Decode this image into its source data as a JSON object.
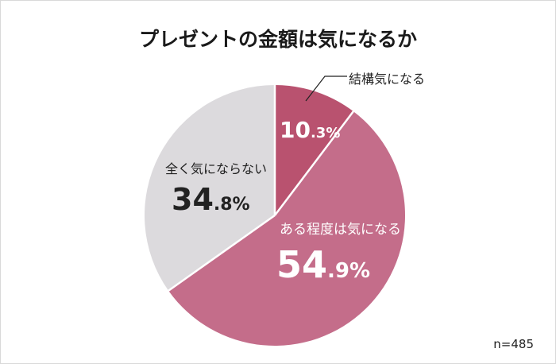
{
  "title": "プレゼントの金額は気になるか",
  "sample_size": "n=485",
  "colors": {
    "slice_very": "#B9526F",
    "slice_somewhat": "#C46D8A",
    "slice_not": "#DCDADD",
    "separator": "#FFFFFF",
    "text_dark": "#222222",
    "text_light": "#FFFFFF"
  },
  "slices": [
    {
      "label": "結構気になる",
      "int": "10",
      "dec": ".3%",
      "value": 10.3
    },
    {
      "label": "ある程度は気になる",
      "int": "54",
      "dec": ".9%",
      "value": 54.9
    },
    {
      "label": "全く気にならない",
      "int": "34",
      "dec": ".8%",
      "value": 34.8
    }
  ],
  "chart_data": {
    "type": "pie",
    "title": "プレゼントの金額は気になるか",
    "categories": [
      "結構気になる",
      "ある程度は気になる",
      "全く気にならない"
    ],
    "values": [
      10.3,
      54.9,
      34.8
    ],
    "unit": "%",
    "start_angle": "12 o'clock, clockwise",
    "annotations": [
      "n=485"
    ],
    "colors": [
      "#B9526F",
      "#C46D8A",
      "#DCDADD"
    ],
    "legend": "none (direct labels)"
  }
}
